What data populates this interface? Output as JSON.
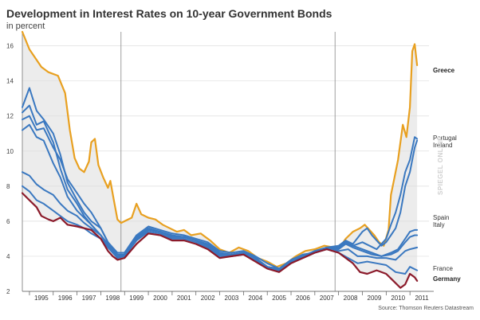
{
  "chart_data": {
    "type": "line",
    "title": "Development in Interest Rates on 10-year Government Bonds",
    "subtitle": "in percent",
    "ylim": [
      2,
      16.8
    ],
    "yticks": [
      2,
      4,
      6,
      8,
      10,
      12,
      14,
      16
    ],
    "xlim": [
      1994.7,
      2011.8
    ],
    "xtick_labels": [
      "1995",
      "1996",
      "1997",
      "1998",
      "1999",
      "2000",
      "2001",
      "2002",
      "2003",
      "2004",
      "2005",
      "2006",
      "2007",
      "2008",
      "2009",
      "2010",
      "2011"
    ],
    "grid": "vertical lines at 1999 and 2008; horizontal gridlines",
    "series": [
      {
        "name": "Greece",
        "color": "#e8a020",
        "x": [
          1994.7,
          1995,
          1995.3,
          1995.5,
          1995.8,
          1996.2,
          1996.5,
          1996.7,
          1996.9,
          1997.1,
          1997.3,
          1997.5,
          1997.6,
          1997.75,
          1997.9,
          1998.1,
          1998.3,
          1998.4,
          1998.55,
          1998.7,
          1998.85,
          1999,
          1999.3,
          1999.5,
          1999.7,
          2000,
          2000.3,
          2000.6,
          2000.9,
          2001.2,
          2001.5,
          2001.8,
          2002.2,
          2002.6,
          2003,
          2003.4,
          2003.8,
          2004.2,
          2004.6,
          2005,
          2005.4,
          2005.8,
          2006.2,
          2006.6,
          2007,
          2007.4,
          2007.8,
          2008.1,
          2008.3,
          2008.6,
          2008.9,
          2009.1,
          2009.3,
          2009.5,
          2009.7,
          2009.9,
          2010.1,
          2010.2,
          2010.35,
          2010.5,
          2010.6,
          2010.7,
          2010.85,
          2011,
          2011.1,
          2011.2,
          2011.3
        ],
        "y": [
          16.8,
          15.8,
          15.2,
          14.8,
          14.5,
          14.3,
          13.3,
          11.2,
          9.6,
          9,
          8.8,
          9.4,
          10.5,
          10.7,
          9.2,
          8.5,
          7.9,
          8.3,
          7.2,
          6.1,
          5.9,
          6.0,
          6.2,
          7.0,
          6.4,
          6.2,
          6.1,
          5.8,
          5.6,
          5.4,
          5.5,
          5.2,
          5.3,
          4.9,
          4.4,
          4.2,
          4.5,
          4.3,
          3.9,
          3.7,
          3.4,
          3.6,
          4.0,
          4.3,
          4.4,
          4.6,
          4.5,
          4.6,
          5.0,
          5.4,
          5.6,
          5.8,
          5.5,
          5.2,
          4.8,
          4.6,
          5.5,
          7.5,
          8.5,
          9.5,
          10.5,
          11.5,
          10.8,
          12.5,
          15.7,
          16.1,
          14.9
        ]
      },
      {
        "name": "Portugal",
        "color": "#3a78c0",
        "x": [
          1994.7,
          1995,
          1995.3,
          1995.6,
          1996,
          1996.3,
          1996.6,
          1997,
          1997.3,
          1997.6,
          1998,
          1998.3,
          1998.7,
          1999,
          1999.5,
          2000,
          2000.5,
          2001,
          2001.5,
          2002,
          2002.5,
          2003,
          2003.5,
          2004,
          2004.5,
          2005,
          2005.5,
          2006,
          2006.5,
          2007,
          2007.5,
          2008,
          2008.3,
          2008.6,
          2009,
          2009.3,
          2009.6,
          2010,
          2010.2,
          2010.4,
          2010.6,
          2010.8,
          2011,
          2011.2,
          2011.3
        ],
        "y": [
          12.5,
          13.6,
          12.3,
          11.8,
          11.0,
          9.8,
          8.2,
          7.2,
          6.5,
          6.0,
          5.6,
          4.8,
          4.2,
          4.2,
          5.2,
          5.7,
          5.5,
          5.3,
          5.2,
          5.0,
          4.8,
          4.3,
          4.2,
          4.3,
          4.0,
          3.6,
          3.3,
          3.8,
          4.1,
          4.2,
          4.4,
          4.5,
          4.8,
          4.6,
          4.8,
          4.6,
          4.4,
          5.0,
          5.8,
          6.5,
          7.5,
          8.8,
          9.5,
          10.8,
          10.7
        ]
      },
      {
        "name": "Ireland",
        "color": "#3a78c0",
        "x": [
          1994.7,
          1995,
          1995.3,
          1995.6,
          1996,
          1996.3,
          1996.6,
          1997,
          1997.3,
          1997.6,
          1998,
          1998.3,
          1998.7,
          1999,
          1999.5,
          2000,
          2000.5,
          2001,
          2001.5,
          2002,
          2002.5,
          2003,
          2003.5,
          2004,
          2004.5,
          2005,
          2005.5,
          2006,
          2006.5,
          2007,
          2007.5,
          2008,
          2008.3,
          2008.6,
          2009,
          2009.2,
          2009.4,
          2009.6,
          2009.8,
          2010,
          2010.2,
          2010.4,
          2010.6,
          2010.8,
          2011,
          2011.2,
          2011.3
        ],
        "y": [
          11.8,
          12.0,
          11.2,
          11.3,
          10.2,
          9.5,
          8.4,
          7.6,
          7.0,
          6.5,
          5.6,
          4.8,
          4.0,
          4.1,
          5.1,
          5.6,
          5.4,
          5.2,
          5.1,
          4.9,
          4.7,
          4.2,
          4.1,
          4.2,
          3.9,
          3.4,
          3.3,
          3.7,
          4.0,
          4.3,
          4.5,
          4.6,
          4.9,
          4.7,
          5.4,
          5.6,
          5.2,
          4.9,
          4.6,
          4.8,
          5.2,
          5.6,
          6.5,
          8.0,
          8.8,
          10.2,
          10.6
        ]
      },
      {
        "name": "Spain",
        "color": "#3a78c0",
        "x": [
          1994.7,
          1995,
          1995.3,
          1995.6,
          1996,
          1996.3,
          1996.6,
          1997,
          1997.3,
          1997.6,
          1998,
          1998.3,
          1998.7,
          1999,
          1999.5,
          2000,
          2000.5,
          2001,
          2001.5,
          2002,
          2002.5,
          2003,
          2003.5,
          2004,
          2004.5,
          2005,
          2005.5,
          2006,
          2006.5,
          2007,
          2007.5,
          2008,
          2008.3,
          2008.6,
          2009,
          2009.4,
          2009.8,
          2010.2,
          2010.5,
          2010.8,
          2011,
          2011.2,
          2011.3
        ],
        "y": [
          11.2,
          11.5,
          10.8,
          10.6,
          9.3,
          8.5,
          7.4,
          6.6,
          6.2,
          5.8,
          5.2,
          4.6,
          4.0,
          4.0,
          5.0,
          5.5,
          5.4,
          5.1,
          5.1,
          4.9,
          4.6,
          4.1,
          4.1,
          4.2,
          3.9,
          3.4,
          3.2,
          3.7,
          4.0,
          4.3,
          4.5,
          4.4,
          4.7,
          4.5,
          4.3,
          4.1,
          4.0,
          4.2,
          4.4,
          5.0,
          5.4,
          5.5,
          5.5
        ]
      },
      {
        "name": "Italy",
        "color": "#3a78c0",
        "x": [
          1994.7,
          1995,
          1995.3,
          1995.6,
          1996,
          1996.3,
          1996.6,
          1997,
          1997.3,
          1997.6,
          1998,
          1998.3,
          1998.7,
          1999,
          1999.5,
          2000,
          2000.5,
          2001,
          2001.5,
          2002,
          2002.5,
          2003,
          2003.5,
          2004,
          2004.5,
          2005,
          2005.5,
          2006,
          2006.5,
          2007,
          2007.5,
          2008,
          2008.3,
          2008.6,
          2009,
          2009.4,
          2009.8,
          2010.2,
          2010.5,
          2010.8,
          2011,
          2011.2,
          2011.3
        ],
        "y": [
          12.2,
          12.6,
          11.5,
          11.7,
          10.5,
          9.0,
          7.8,
          7.0,
          6.3,
          5.8,
          5.2,
          4.5,
          3.9,
          4.0,
          5.0,
          5.5,
          5.4,
          5.1,
          5.1,
          4.9,
          4.6,
          4.1,
          4.1,
          4.2,
          3.9,
          3.4,
          3.2,
          3.7,
          4.0,
          4.3,
          4.5,
          4.5,
          4.8,
          4.6,
          4.4,
          4.2,
          4.0,
          4.1,
          4.3,
          4.8,
          5.1,
          5.2,
          5.2
        ]
      },
      {
        "name": "",
        "color": "#3a78c0",
        "x": [
          1994.7,
          1995,
          1995.3,
          1995.6,
          1996,
          1996.3,
          1996.6,
          1997,
          1997.3,
          1997.6,
          1998,
          1998.3,
          1998.7,
          1999,
          1999.5,
          2000,
          2000.5,
          2001,
          2001.5,
          2002,
          2002.5,
          2003,
          2003.5,
          2004,
          2004.5,
          2005,
          2005.5,
          2006,
          2006.5,
          2007,
          2007.5,
          2008,
          2008.4,
          2008.8,
          2009.2,
          2009.6,
          2010,
          2010.4,
          2010.8,
          2011,
          2011.3
        ],
        "y": [
          8.8,
          8.6,
          8.1,
          7.8,
          7.5,
          7.0,
          6.6,
          6.3,
          5.9,
          5.6,
          5.2,
          4.7,
          4.1,
          4.1,
          5.0,
          5.5,
          5.4,
          5.1,
          5.1,
          4.9,
          4.6,
          4.1,
          4.1,
          4.2,
          3.9,
          3.4,
          3.2,
          3.7,
          4.0,
          4.3,
          4.5,
          4.3,
          4.4,
          4.0,
          4.0,
          3.9,
          3.9,
          3.8,
          4.3,
          4.4,
          4.5
        ]
      },
      {
        "name": "France",
        "color": "#3a78c0",
        "x": [
          1994.7,
          1995,
          1995.3,
          1995.6,
          1996,
          1996.3,
          1996.6,
          1997,
          1997.3,
          1997.6,
          1998,
          1998.3,
          1998.7,
          1999,
          1999.5,
          2000,
          2000.5,
          2001,
          2001.5,
          2002,
          2002.5,
          2003,
          2003.5,
          2004,
          2004.5,
          2005,
          2005.5,
          2006,
          2006.5,
          2007,
          2007.5,
          2008,
          2008.4,
          2008.8,
          2009.2,
          2009.6,
          2010,
          2010.4,
          2010.8,
          2011,
          2011.3
        ],
        "y": [
          8.0,
          7.7,
          7.2,
          7.0,
          6.6,
          6.3,
          6.0,
          5.8,
          5.6,
          5.3,
          5.0,
          4.5,
          4.0,
          4.0,
          4.9,
          5.4,
          5.3,
          5.0,
          5.0,
          4.8,
          4.5,
          4.0,
          4.0,
          4.1,
          3.8,
          3.4,
          3.2,
          3.7,
          3.9,
          4.2,
          4.4,
          4.2,
          3.9,
          3.6,
          3.7,
          3.6,
          3.5,
          3.1,
          3.0,
          3.4,
          3.2
        ]
      },
      {
        "name": "Germany",
        "color": "#8b1a2a",
        "x": [
          1994.7,
          1995,
          1995.3,
          1995.5,
          1995.8,
          1996,
          1996.3,
          1996.6,
          1997,
          1997.3,
          1997.6,
          1998,
          1998.3,
          1998.5,
          1998.7,
          1999,
          1999.5,
          2000,
          2000.5,
          2001,
          2001.5,
          2002,
          2002.5,
          2003,
          2003.5,
          2004,
          2004.5,
          2005,
          2005.5,
          2006,
          2006.5,
          2007,
          2007.5,
          2008,
          2008.3,
          2008.6,
          2008.9,
          2009.2,
          2009.6,
          2010,
          2010.3,
          2010.6,
          2010.8,
          2011,
          2011.2,
          2011.3
        ],
        "y": [
          7.6,
          7.2,
          6.8,
          6.3,
          6.1,
          6.0,
          6.2,
          5.8,
          5.7,
          5.6,
          5.5,
          5.0,
          4.3,
          4.0,
          3.8,
          3.9,
          4.7,
          5.3,
          5.2,
          4.9,
          4.9,
          4.7,
          4.4,
          3.9,
          4.0,
          4.1,
          3.7,
          3.3,
          3.1,
          3.6,
          3.9,
          4.2,
          4.4,
          4.2,
          3.9,
          3.6,
          3.1,
          3.0,
          3.2,
          3.0,
          2.6,
          2.2,
          2.4,
          3.0,
          2.8,
          2.6
        ]
      }
    ],
    "labels": {
      "greece": "Greece",
      "portugal": "Portugal",
      "ireland": "Ireland",
      "spain": "Spain",
      "italy": "Italy",
      "france": "France",
      "germany": "Germany"
    },
    "source": "Source: Thomson Reuters Datastream",
    "watermark": "SPIEGEL ONLINE"
  }
}
